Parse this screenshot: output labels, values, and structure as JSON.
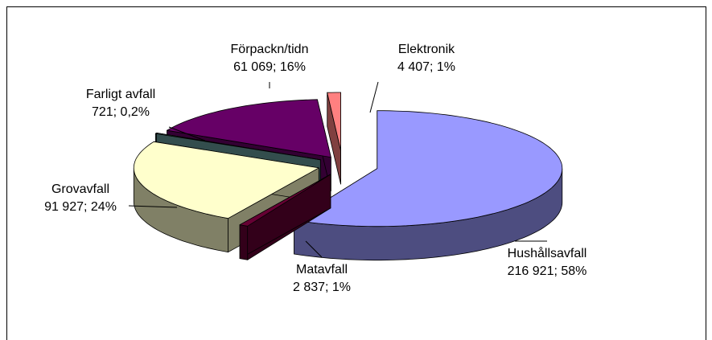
{
  "chart_data": {
    "type": "pie3d",
    "categories": [
      "Hushållsavfall",
      "Matavfall",
      "Grovavfall",
      "Farligt avfall",
      "Förpackn/tidn",
      "Elektronik"
    ],
    "values": [
      216921,
      2837,
      91927,
      721,
      61069,
      4407
    ],
    "value_labels": [
      "216 921; 58%",
      "2 837; 1%",
      "91 927; 24%",
      "721; 0,2%",
      "61 069; 16%",
      "4 407; 1%"
    ],
    "colors": [
      "#9999ff",
      "#660033",
      "#ffffcc",
      "#669999",
      "#660066",
      "#ff8080"
    ]
  }
}
